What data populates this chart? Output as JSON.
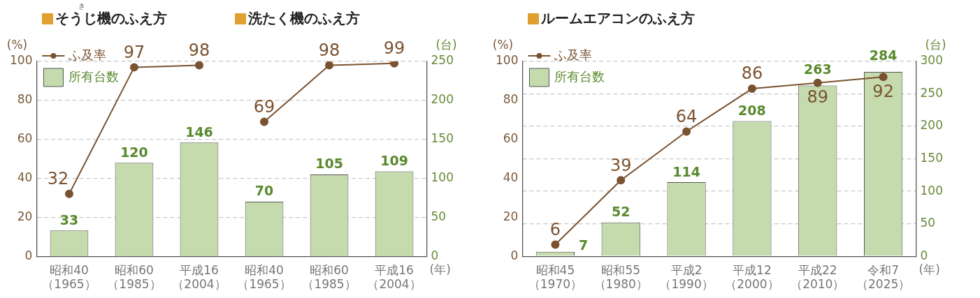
{
  "chart_data": [
    {
      "type": "bar",
      "title": "そうじ機のふえ方",
      "subtitle": "洗たく機のふえ方",
      "annotations": [
        "き"
      ],
      "ylabel": "(%)",
      "y2label": "(台)",
      "xlabel": "(年)",
      "categories": [
        "昭和40\n（1965）",
        "昭和60\n（1985）",
        "平成16\n（2004）",
        "昭和40\n（1965）",
        "昭和60\n（1985）",
        "平成16\n（2004）"
      ],
      "series": [
        {
          "name": "ふ及率",
          "type": "line",
          "color": "#7b5230",
          "values": [
            32,
            97,
            98,
            null,
            null,
            null
          ]
        },
        {
          "type": "line",
          "color": "#7b5230",
          "values": [
            null,
            null,
            null,
            69,
            98,
            99
          ]
        },
        {
          "name": "所有台数",
          "axis": "y2",
          "color": "#c5dbad",
          "values": [
            33,
            120,
            146,
            70,
            105,
            109
          ]
        }
      ],
      "ylim": [
        0,
        100
      ],
      "yticks": [
        0,
        20,
        40,
        60,
        80,
        100
      ],
      "y2lim": [
        0,
        250
      ],
      "y2ticks": [
        0,
        50,
        100,
        150,
        200,
        250
      ],
      "grid": "y",
      "legend": "top left",
      "marker": "circle",
      "data_labels": true
    },
    {
      "type": "bar",
      "title": "ルームエアコンのふえ方",
      "ylabel": "(%)",
      "y2label": "(台)",
      "xlabel": "(年)",
      "categories": [
        "昭和45\n（1970）",
        "昭和55\n（1980）",
        "平成2\n（1990）",
        "平成12\n（2000）",
        "平成22\n（2010）",
        "令和7\n（2025）"
      ],
      "series": [
        {
          "name": "ふ及率",
          "type": "line",
          "color": "#7b5230",
          "values": [
            6,
            39,
            64,
            86,
            89,
            92
          ]
        },
        {
          "name": "所有台数",
          "axis": "y2",
          "color": "#c5dbad",
          "values": [
            7,
            52,
            114,
            208,
            263,
            284
          ]
        }
      ],
      "ylim": [
        0,
        100
      ],
      "yticks": [
        0,
        20,
        40,
        60,
        80,
        100
      ],
      "y2lim": [
        0,
        300
      ],
      "y2ticks": [
        0,
        50,
        100,
        150,
        200,
        250,
        300
      ],
      "grid": "y2",
      "legend": "top left",
      "marker": "circle",
      "data_labels": true
    }
  ]
}
